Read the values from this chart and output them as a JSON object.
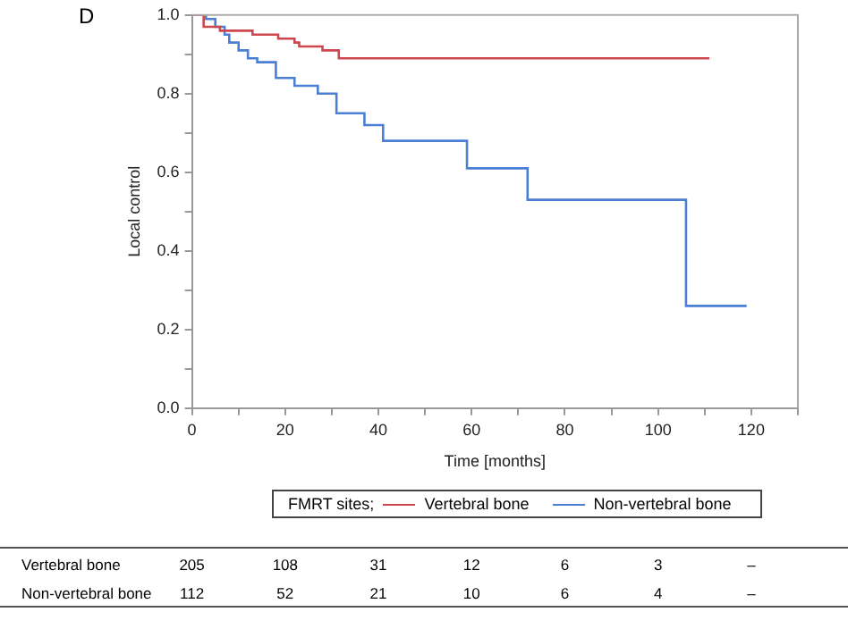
{
  "chart_data": {
    "type": "step",
    "title": "D",
    "xlabel": "Time [months]",
    "ylabel": "Local control",
    "legend_title": "FMRT sites;",
    "series": [
      {
        "name": "Vertebral bone",
        "color": "#d0464e",
        "x": [
          0,
          2.5,
          6,
          13,
          18.5,
          22,
          23,
          28,
          31.5,
          111
        ],
        "values": [
          1,
          0.97,
          0.96,
          0.95,
          0.94,
          0.93,
          0.92,
          0.91,
          0.89,
          0.89
        ]
      },
      {
        "name": "Non-vertebral bone",
        "color": "#4a7fd4",
        "x": [
          0,
          3,
          5,
          7,
          8,
          10,
          12,
          14,
          18,
          22,
          27,
          31,
          37,
          41,
          59,
          72,
          106,
          119
        ],
        "values": [
          1,
          0.99,
          0.97,
          0.95,
          0.93,
          0.91,
          0.89,
          0.88,
          0.84,
          0.82,
          0.8,
          0.75,
          0.72,
          0.68,
          0.61,
          0.53,
          0.26,
          0.26
        ]
      }
    ],
    "xlim": [
      0,
      130
    ],
    "xticks": [
      0,
      {
        "value": 10,
        "label": null
      },
      20,
      {
        "value": 30,
        "label": null
      },
      40,
      {
        "value": 50,
        "label": null
      },
      60,
      {
        "value": 70,
        "label": null
      },
      80,
      {
        "value": 90,
        "label": null
      },
      100,
      {
        "value": 110,
        "label": null
      },
      120,
      {
        "value": 130,
        "label": null
      }
    ],
    "ylim": [
      0,
      1
    ],
    "yticks": [
      {
        "value": 0,
        "label": "0.0"
      },
      {
        "value": 0.1,
        "label": null
      },
      0.2,
      {
        "value": 0.3,
        "label": null
      },
      0.4,
      {
        "value": 0.5,
        "label": null
      },
      0.6,
      {
        "value": 0.7,
        "label": null
      },
      0.8,
      {
        "value": 0.9,
        "label": null
      },
      {
        "value": 1,
        "label": "1.0"
      }
    ],
    "grid": false,
    "legend": "bottom",
    "marker": "none",
    "line_style": "solid",
    "annotations": [
      "Vertebral bone",
      "205",
      "108",
      "31",
      "12",
      "6",
      "3",
      "–",
      "Non-vertebral bone",
      "112",
      "52",
      "21",
      "10",
      "6",
      "4",
      "–"
    ]
  }
}
